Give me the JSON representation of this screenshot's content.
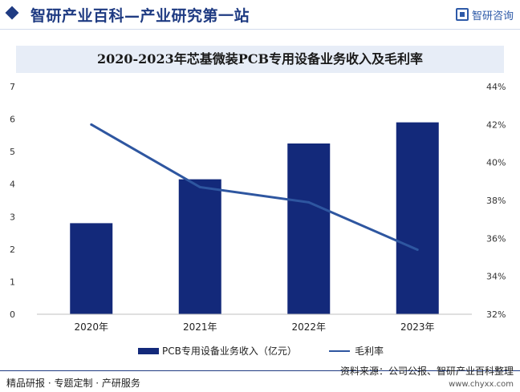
{
  "header": {
    "title": "智研产业百科—产业研究第一站",
    "logo_text": "智研咨询"
  },
  "colors": {
    "brand": "#1f3b82",
    "bar": "#13297a",
    "line": "#2e56a0",
    "banner_bg": "#e7edf7"
  },
  "chart_data": {
    "type": "bar",
    "title": "2020-2023年芯基微装PCB专用设备业务收入及毛利率",
    "categories": [
      "2020年",
      "2021年",
      "2022年",
      "2023年"
    ],
    "series": [
      {
        "name": "PCB专用设备业务收入（亿元）",
        "type": "bar",
        "axis": "left",
        "values": [
          2.8,
          4.15,
          5.25,
          5.9
        ]
      },
      {
        "name": "毛利率",
        "type": "line",
        "axis": "right",
        "values": [
          42.0,
          38.7,
          37.9,
          35.4
        ]
      }
    ],
    "y_left": {
      "min": 0,
      "max": 7,
      "ticks": [
        "0",
        "1",
        "2",
        "3",
        "4",
        "5",
        "6",
        "7"
      ]
    },
    "y_right": {
      "min": 32,
      "max": 44,
      "ticks": [
        "32%",
        "34%",
        "36%",
        "38%",
        "40%",
        "42%",
        "44%"
      ]
    },
    "grid": false,
    "legend_position": "bottom"
  },
  "footer": {
    "left": "精品研报 · 专题定制 · 产研服务",
    "source": "资料来源：公司公报、智研产业百科整理",
    "url": "www.chyxx.com"
  }
}
